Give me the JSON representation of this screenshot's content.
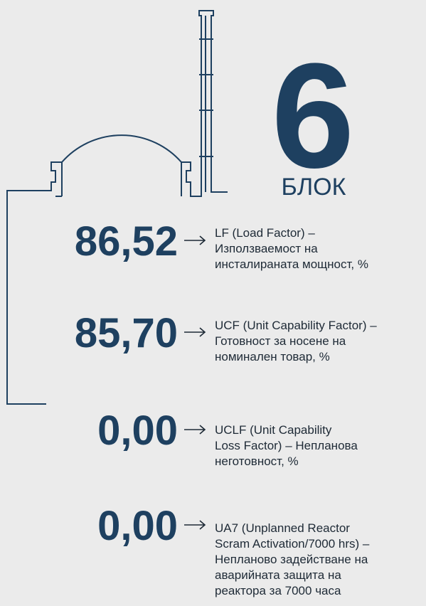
{
  "unit": {
    "number": "6",
    "label": "БЛОК"
  },
  "metrics": [
    {
      "value": "86,52",
      "lines": [
        "LF (Load Factor) –",
        "Използваемост на",
        "инсталираната мощност, %"
      ]
    },
    {
      "value": "85,70",
      "lines": [
        "UCF (Unit Capability Factor) –",
        "Готовност за носене на",
        "номинален товар, %"
      ]
    },
    {
      "value": "0,00",
      "lines": [
        "UCLF (Unit Capability",
        "Loss Factor) – Непланова",
        "неготовност, %"
      ]
    },
    {
      "value": "0,00",
      "lines": [
        "UA7 (Unplanned Reactor",
        "Scram Activation/7000 hrs) –",
        "Непланово задействане на",
        "аварийната защита на",
        "реактора за 7000 часа"
      ]
    }
  ]
}
